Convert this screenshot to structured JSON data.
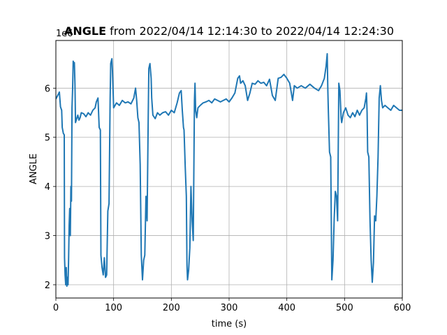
{
  "chart_data": {
    "type": "line",
    "title_bold": "ANGLE",
    "title_rest": " from 2022/04/14 12:14:30 to 2022/04/14 12:24:30",
    "xlabel": "time (s)",
    "ylabel": "ANGLE",
    "offset_label": "1e6",
    "xlim": [
      0,
      600
    ],
    "ylim": [
      1.73,
      6.97
    ],
    "xticks": [
      0,
      100,
      200,
      300,
      400,
      500,
      600
    ],
    "yticks": [
      2,
      3,
      4,
      5,
      6
    ],
    "grid": true,
    "line_color": "#1f77b4",
    "series": [
      {
        "values": [
          [
            0,
            5.78
          ],
          [
            3,
            5.85
          ],
          [
            6,
            5.92
          ],
          [
            8,
            5.62
          ],
          [
            10,
            5.55
          ],
          [
            11,
            5.2
          ],
          [
            13,
            5.08
          ],
          [
            14.5,
            5.05
          ],
          [
            15,
            2.55
          ],
          [
            16,
            2.2
          ],
          [
            17,
            2.0
          ],
          [
            18,
            2.35
          ],
          [
            19,
            1.97
          ],
          [
            20,
            2.15
          ],
          [
            21,
            2.0
          ],
          [
            22,
            2.5
          ],
          [
            23,
            3.2
          ],
          [
            24,
            3.55
          ],
          [
            25,
            3.0
          ],
          [
            26,
            4.0
          ],
          [
            27,
            3.7
          ],
          [
            28,
            5.6
          ],
          [
            29,
            6.0
          ],
          [
            30,
            6.55
          ],
          [
            31,
            6.5
          ],
          [
            32,
            6.52
          ],
          [
            33,
            6.1
          ],
          [
            34,
            5.3
          ],
          [
            36,
            5.38
          ],
          [
            38,
            5.45
          ],
          [
            40,
            5.35
          ],
          [
            42,
            5.4
          ],
          [
            44,
            5.5
          ],
          [
            48,
            5.48
          ],
          [
            52,
            5.42
          ],
          [
            56,
            5.5
          ],
          [
            60,
            5.45
          ],
          [
            64,
            5.55
          ],
          [
            68,
            5.6
          ],
          [
            70,
            5.72
          ],
          [
            73,
            5.8
          ],
          [
            75,
            5.2
          ],
          [
            77,
            5.15
          ],
          [
            78,
            2.6
          ],
          [
            80,
            2.35
          ],
          [
            82,
            2.2
          ],
          [
            84,
            2.55
          ],
          [
            86,
            2.15
          ],
          [
            88,
            2.2
          ],
          [
            90,
            3.5
          ],
          [
            92,
            3.65
          ],
          [
            94,
            5.8
          ],
          [
            95,
            6.5
          ],
          [
            97,
            6.6
          ],
          [
            98,
            6.35
          ],
          [
            100,
            5.6
          ],
          [
            105,
            5.7
          ],
          [
            110,
            5.65
          ],
          [
            115,
            5.75
          ],
          [
            120,
            5.7
          ],
          [
            125,
            5.72
          ],
          [
            130,
            5.68
          ],
          [
            135,
            5.8
          ],
          [
            138,
            6.0
          ],
          [
            140,
            5.75
          ],
          [
            142,
            5.4
          ],
          [
            144,
            5.3
          ],
          [
            146,
            4.45
          ],
          [
            148,
            2.6
          ],
          [
            150,
            2.1
          ],
          [
            152,
            2.5
          ],
          [
            154,
            2.6
          ],
          [
            156,
            3.8
          ],
          [
            158,
            3.3
          ],
          [
            160,
            5.5
          ],
          [
            161,
            6.4
          ],
          [
            163,
            6.5
          ],
          [
            165,
            6.2
          ],
          [
            166,
            5.8
          ],
          [
            168,
            5.45
          ],
          [
            172,
            5.38
          ],
          [
            176,
            5.5
          ],
          [
            180,
            5.45
          ],
          [
            185,
            5.5
          ],
          [
            190,
            5.52
          ],
          [
            195,
            5.45
          ],
          [
            200,
            5.55
          ],
          [
            205,
            5.5
          ],
          [
            210,
            5.7
          ],
          [
            214,
            5.9
          ],
          [
            217,
            5.95
          ],
          [
            219,
            5.55
          ],
          [
            221,
            5.2
          ],
          [
            222,
            5.15
          ],
          [
            224,
            4.4
          ],
          [
            226,
            3.8
          ],
          [
            227,
            2.4
          ],
          [
            228,
            2.1
          ],
          [
            230,
            2.3
          ],
          [
            232,
            2.75
          ],
          [
            234,
            4.0
          ],
          [
            236,
            3.3
          ],
          [
            238,
            2.9
          ],
          [
            240,
            5.75
          ],
          [
            241,
            6.1
          ],
          [
            242,
            5.55
          ],
          [
            244,
            5.4
          ],
          [
            246,
            5.6
          ],
          [
            250,
            5.65
          ],
          [
            255,
            5.7
          ],
          [
            260,
            5.72
          ],
          [
            265,
            5.75
          ],
          [
            270,
            5.7
          ],
          [
            275,
            5.78
          ],
          [
            280,
            5.75
          ],
          [
            285,
            5.72
          ],
          [
            290,
            5.75
          ],
          [
            295,
            5.78
          ],
          [
            300,
            5.72
          ],
          [
            305,
            5.8
          ],
          [
            310,
            5.9
          ],
          [
            315,
            6.2
          ],
          [
            318,
            6.25
          ],
          [
            320,
            6.1
          ],
          [
            324,
            6.15
          ],
          [
            328,
            6.05
          ],
          [
            332,
            5.75
          ],
          [
            336,
            5.9
          ],
          [
            340,
            6.1
          ],
          [
            345,
            6.08
          ],
          [
            350,
            6.15
          ],
          [
            355,
            6.1
          ],
          [
            360,
            6.12
          ],
          [
            365,
            6.05
          ],
          [
            370,
            6.18
          ],
          [
            375,
            5.85
          ],
          [
            380,
            5.75
          ],
          [
            385,
            6.2
          ],
          [
            390,
            6.22
          ],
          [
            395,
            6.28
          ],
          [
            400,
            6.2
          ],
          [
            405,
            6.1
          ],
          [
            410,
            5.75
          ],
          [
            413,
            6.05
          ],
          [
            418,
            6.0
          ],
          [
            425,
            6.05
          ],
          [
            432,
            6.0
          ],
          [
            440,
            6.08
          ],
          [
            448,
            6.0
          ],
          [
            455,
            5.95
          ],
          [
            460,
            6.05
          ],
          [
            465,
            6.2
          ],
          [
            468,
            6.45
          ],
          [
            470,
            6.7
          ],
          [
            471,
            5.95
          ],
          [
            472,
            5.5
          ],
          [
            474,
            4.7
          ],
          [
            476,
            4.6
          ],
          [
            478,
            2.1
          ],
          [
            480,
            2.5
          ],
          [
            482,
            3.35
          ],
          [
            484,
            3.9
          ],
          [
            486,
            3.8
          ],
          [
            488,
            3.3
          ],
          [
            490,
            6.1
          ],
          [
            492,
            5.95
          ],
          [
            494,
            5.4
          ],
          [
            495,
            5.3
          ],
          [
            498,
            5.5
          ],
          [
            502,
            5.6
          ],
          [
            506,
            5.45
          ],
          [
            510,
            5.4
          ],
          [
            514,
            5.5
          ],
          [
            518,
            5.42
          ],
          [
            522,
            5.55
          ],
          [
            526,
            5.45
          ],
          [
            530,
            5.55
          ],
          [
            534,
            5.6
          ],
          [
            537,
            5.8
          ],
          [
            538,
            5.9
          ],
          [
            539,
            5.5
          ],
          [
            540,
            4.7
          ],
          [
            542,
            4.6
          ],
          [
            544,
            3.35
          ],
          [
            546,
            2.5
          ],
          [
            548,
            2.05
          ],
          [
            550,
            2.45
          ],
          [
            552,
            3.4
          ],
          [
            554,
            3.3
          ],
          [
            556,
            3.8
          ],
          [
            558,
            4.6
          ],
          [
            560,
            5.8
          ],
          [
            562,
            6.05
          ],
          [
            564,
            5.75
          ],
          [
            566,
            5.6
          ],
          [
            570,
            5.65
          ],
          [
            575,
            5.6
          ],
          [
            580,
            5.55
          ],
          [
            585,
            5.65
          ],
          [
            590,
            5.6
          ],
          [
            595,
            5.55
          ],
          [
            600,
            5.55
          ]
        ]
      }
    ]
  }
}
